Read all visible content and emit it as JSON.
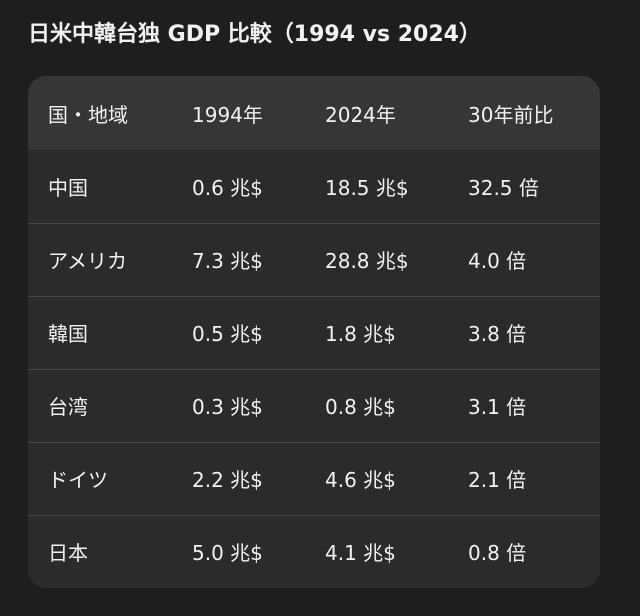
{
  "header": {
    "title": "日米中韓台独 GDP 比較（1994 vs 2024）"
  },
  "table": {
    "columns": [
      "国・地域",
      "1994年",
      "2024年",
      "30年前比"
    ],
    "rows": [
      [
        "中国",
        "0.6 兆$",
        "18.5 兆$",
        "32.5 倍"
      ],
      [
        "アメリカ",
        "7.3 兆$",
        "28.8 兆$",
        "4.0 倍"
      ],
      [
        "韓国",
        "0.5 兆$",
        "1.8 兆$",
        "3.8 倍"
      ],
      [
        "台湾",
        "0.3 兆$",
        "0.8 兆$",
        "3.1 倍"
      ],
      [
        "ドイツ",
        "2.2 兆$",
        "4.6 兆$",
        "2.1 倍"
      ],
      [
        "日本",
        "5.0 兆$",
        "4.1 兆$",
        "0.8 倍"
      ]
    ]
  }
}
